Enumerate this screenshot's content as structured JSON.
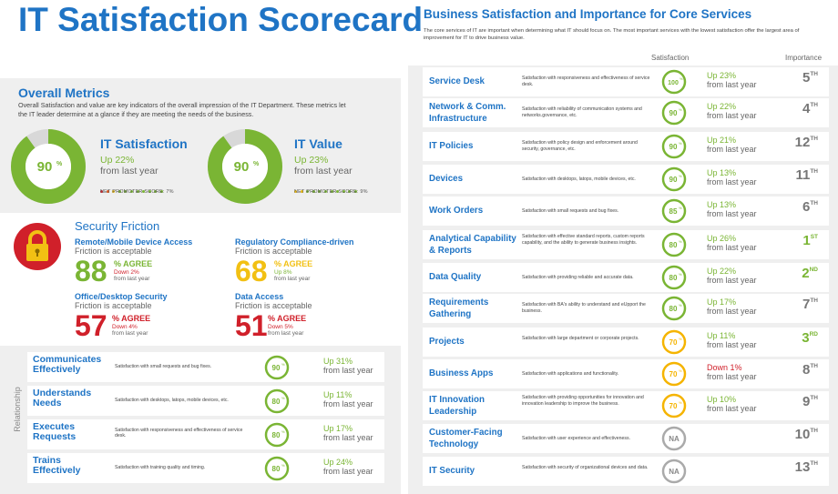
{
  "title": "IT Satisfaction Scorecard",
  "colors": {
    "blue": "#1f74c5",
    "green": "#7ab534",
    "yellow": "#f2c013",
    "orange": "#f5b400",
    "red": "#d0202a",
    "gray": "#aaaaaa"
  },
  "overall": {
    "title": "Overall Metrics",
    "description": "Overall Satisfaction and value are key indicators of the overall impression of the IT Department. These metrics let the IT leader determine at a glance if they are meeting the needs of the business.",
    "it_satisfaction": {
      "label": "IT Satisfaction",
      "value": "90",
      "pct": "%",
      "percent": 90,
      "up": "Up 22%",
      "from": "from last year",
      "nps": "NET PROMOTER SCORE: 7%"
    },
    "it_value": {
      "label": "IT Value",
      "value": "90",
      "pct": "%",
      "percent": 90,
      "up": "Up 23%",
      "from": "from last year",
      "nps": "NET PROMOTER SCORE: 9%"
    }
  },
  "security": {
    "title": "Security Friction",
    "items": [
      {
        "name": "Remote/Mobile Device Access",
        "sub": "Friction is acceptable",
        "value": "88",
        "agree": "% AGREE",
        "change": "Down 2%",
        "from": "from last year",
        "color": "#7ab534"
      },
      {
        "name": "Regulatory Compliance-driven",
        "sub": "Friction is acceptable",
        "value": "68",
        "agree": "% AGREE",
        "change": "Up 8%",
        "from": "from last year",
        "color": "#f2c013"
      },
      {
        "name": "Office/Desktop Security",
        "sub": "Friction is acceptable",
        "value": "57",
        "agree": "% AGREE",
        "change": "Down 4%",
        "from": "from last year",
        "color": "#d0202a"
      },
      {
        "name": "Data Access",
        "sub": "Friction is acceptable",
        "value": "51",
        "agree": "% AGREE",
        "change": "Down 5%",
        "from": "from last year",
        "color": "#d0202a"
      }
    ]
  },
  "relationship": {
    "label": "Relationship",
    "items": [
      {
        "name1": "Communicates",
        "name2": "Effectively",
        "desc": "Satisfaction with small requests and bug fixes.",
        "value": "90",
        "pct": "%",
        "up": "Up 31%",
        "from": "from last year"
      },
      {
        "name1": "Understands",
        "name2": "Needs",
        "desc": "Satisfaction with desktops, latops, mobile devices, etc.",
        "value": "80",
        "pct": "%",
        "up": "Up 11%",
        "from": "from last year"
      },
      {
        "name1": "Executes",
        "name2": "Requests",
        "desc": "Satisfaction with responsiveness and effectiveness of service desk.",
        "value": "80",
        "pct": "%",
        "up": "Up 17%",
        "from": "from last year"
      },
      {
        "name1": "Trains",
        "name2": "Effectively",
        "desc": "Satisfaction with training quality and timing.",
        "value": "80",
        "pct": "%",
        "up": "Up 24%",
        "from": "from last year"
      }
    ]
  },
  "services": {
    "title": "Business Satisfaction and Importance for Core Services",
    "description": "The core services of IT are important when determining what IT should focus on. The most important services with the lowest satisfaction offer the largest area of improvement for IT to drive business value.",
    "header_satisfaction": "Satisfaction",
    "header_importance": "Importance",
    "items": [
      {
        "name1": "Service Desk",
        "name2": "",
        "desc": "Satisfaction with responsiveness and effectiveness of service desk.",
        "value": "100",
        "pct": "%",
        "ring": "#7ab534",
        "change": "Up 23%",
        "from": "from last year",
        "rank": "5",
        "suffix": "TH",
        "rank_color": "gray"
      },
      {
        "name1": "Network & Comm.",
        "name2": "Infrastructure",
        "desc": "Satisfaction with reliability of communication systems and networks.governance, etc.",
        "value": "90",
        "pct": "%",
        "ring": "#7ab534",
        "change": "Up 22%",
        "from": "from last year",
        "rank": "4",
        "suffix": "TH",
        "rank_color": "gray"
      },
      {
        "name1": "IT Policies",
        "name2": "",
        "desc": "Satisfaction with policy design and enforcement around security, governance, etc.",
        "value": "90",
        "pct": "%",
        "ring": "#7ab534",
        "change": "Up 21%",
        "from": "from last year",
        "rank": "12",
        "suffix": "TH",
        "rank_color": "gray"
      },
      {
        "name1": "Devices",
        "name2": "",
        "desc": "Satisfaction with desktops, latops, mobile devices, etc.",
        "value": "90",
        "pct": "%",
        "ring": "#7ab534",
        "change": "Up 13%",
        "from": "from last year",
        "rank": "11",
        "suffix": "TH",
        "rank_color": "gray"
      },
      {
        "name1": "Work Orders",
        "name2": "",
        "desc": "Satisfaction with small requests and bug fixes.",
        "value": "85",
        "pct": "%",
        "ring": "#7ab534",
        "change": "Up 13%",
        "from": "from last year",
        "rank": "6",
        "suffix": "TH",
        "rank_color": "gray"
      },
      {
        "name1": "Analytical Capability",
        "name2": "& Reports",
        "desc": "Satisfaction with effective standard reports, custom reports capability, and the ability to generate business insights.",
        "value": "80",
        "pct": "%",
        "ring": "#7ab534",
        "change": "Up 26%",
        "from": "from last year",
        "rank": "1",
        "suffix": "ST",
        "rank_color": "green"
      },
      {
        "name1": "Data Quality",
        "name2": "",
        "desc": "Satisfaction with providing reliable and accurate data.",
        "value": "80",
        "pct": "%",
        "ring": "#7ab534",
        "change": "Up 22%",
        "from": "from last year",
        "rank": "2",
        "suffix": "ND",
        "rank_color": "green"
      },
      {
        "name1": "Requirements",
        "name2": "Gathering",
        "desc": "Satisfaction with BA's ability to understand and eUpport the business.",
        "value": "80",
        "pct": "%",
        "ring": "#7ab534",
        "change": "Up 17%",
        "from": "from last year",
        "rank": "7",
        "suffix": "TH",
        "rank_color": "gray"
      },
      {
        "name1": "Projects",
        "name2": "",
        "desc": "Satisfaction with large department or corporate projects.",
        "value": "70",
        "pct": "%",
        "ring": "#f5b400",
        "change": "Up 11%",
        "from": "from last year",
        "rank": "3",
        "suffix": "RD",
        "rank_color": "green"
      },
      {
        "name1": "Business Apps",
        "name2": "",
        "desc": "Satisfaction with applications and functionality.",
        "value": "70",
        "pct": "%",
        "ring": "#f5b400",
        "change": "Down 1%",
        "down": true,
        "from": "from last year",
        "rank": "8",
        "suffix": "TH",
        "rank_color": "gray"
      },
      {
        "name1": "IT Innovation",
        "name2": "Leadership",
        "desc": "Satisfaction with providing opportunities for innovation and innovation leadership to improve the business.",
        "value": "70",
        "pct": "%",
        "ring": "#f5b400",
        "change": "Up 10%",
        "from": "from last year",
        "rank": "9",
        "suffix": "TH",
        "rank_color": "gray"
      },
      {
        "name1": "Customer-Facing",
        "name2": "Technology",
        "desc": "Satisfaction with user experience and effectiveness.",
        "value": "NA",
        "pct": "",
        "ring": "#aaaaaa",
        "change": "",
        "from": "",
        "rank": "10",
        "suffix": "TH",
        "rank_color": "gray"
      },
      {
        "name1": "IT Security",
        "name2": "",
        "desc": "Satisfaction with security of organizational devices and data.",
        "value": "NA",
        "pct": "",
        "ring": "#aaaaaa",
        "change": "",
        "from": "",
        "rank": "13",
        "suffix": "TH",
        "rank_color": "gray"
      }
    ]
  }
}
